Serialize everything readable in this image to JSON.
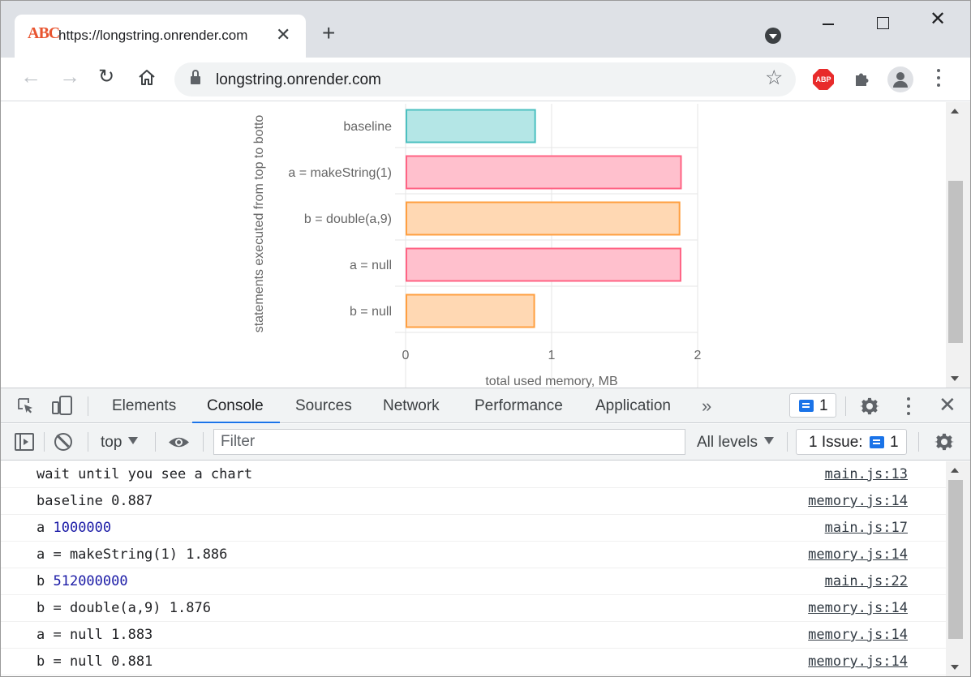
{
  "browser": {
    "tab_title": "https://longstring.onrender.com",
    "favicon_text": "ABC",
    "address": "longstring.onrender.com",
    "abp_label": "ABP"
  },
  "chart_data": {
    "type": "bar",
    "orientation": "horizontal",
    "categories": [
      "baseline",
      "a = makeString(1)",
      "b = double(a,9)",
      "a = null",
      "b = null"
    ],
    "values": [
      0.887,
      1.886,
      1.876,
      1.883,
      0.881
    ],
    "colors": [
      "#4bc0c0",
      "#ff6384",
      "#ff9f40",
      "#ff6384",
      "#ff9f40"
    ],
    "fill_colors": [
      "#b4e6e6",
      "#ffc0cd",
      "#ffd8b3",
      "#ffc0cd",
      "#ffd8b3"
    ],
    "xlabel": "total used memory, MB",
    "ylabel": "statements executed from top to botto",
    "xlim": [
      0,
      2
    ],
    "xticks": [
      "0",
      "1",
      "2"
    ],
    "grid": true
  },
  "devtools": {
    "tabs": [
      "Elements",
      "Console",
      "Sources",
      "Network",
      "Performance",
      "Application"
    ],
    "active_tab": "Console",
    "message_count": "1",
    "context": "top",
    "filter_placeholder": "Filter",
    "levels": "All levels",
    "issues_label": "1 Issue:",
    "issues_count": "1"
  },
  "console": [
    {
      "text": "wait until you see a chart",
      "num": "",
      "source": "main.js:13"
    },
    {
      "text": "baseline 0.887",
      "num": "",
      "source": "memory.js:14"
    },
    {
      "text": "a ",
      "num": "1000000",
      "source": "main.js:17"
    },
    {
      "text": "a = makeString(1) 1.886",
      "num": "",
      "source": "memory.js:14"
    },
    {
      "text": "b ",
      "num": "512000000",
      "source": "main.js:22"
    },
    {
      "text": "b = double(a,9) 1.876",
      "num": "",
      "source": "memory.js:14"
    },
    {
      "text": "a = null 1.883",
      "num": "",
      "source": "memory.js:14"
    },
    {
      "text": "b = null 0.881",
      "num": "",
      "source": "memory.js:14"
    }
  ]
}
